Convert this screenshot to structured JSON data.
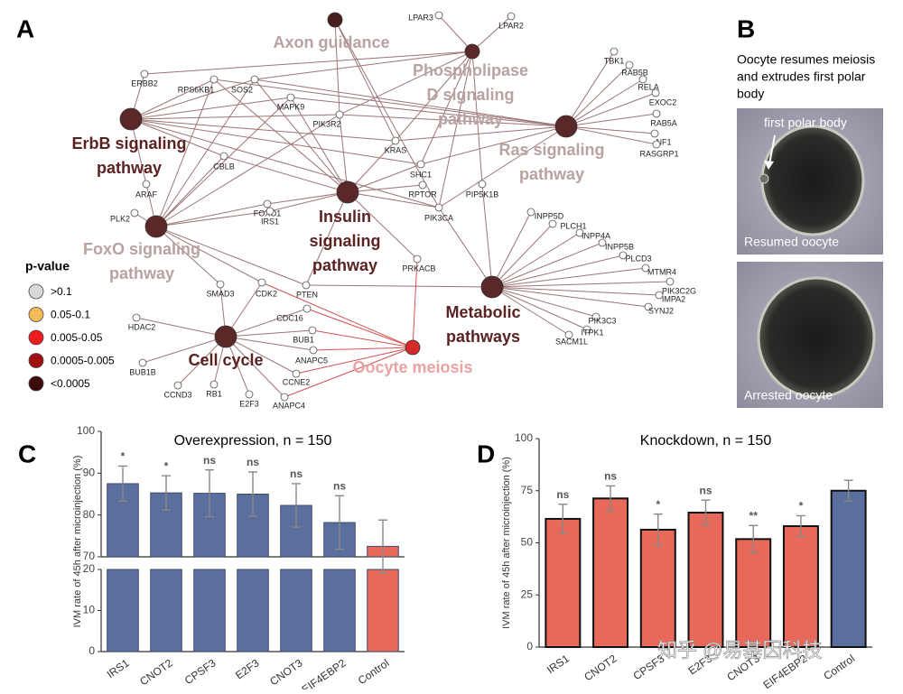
{
  "panel_a": {
    "letter": "A",
    "hubs": [
      {
        "label": [
          "Axon guidance"
        ],
        "color": "#4a1f1f",
        "label_color": "#b8a2a2"
      },
      {
        "label": [
          "Phospholipase",
          "D signaling",
          "pathway"
        ],
        "color": "#5a2828",
        "label_color": "#b8a2a2"
      },
      {
        "label": [
          "ErbB signaling",
          "pathway"
        ],
        "color": "#5a2828",
        "label_color": "#5b2222"
      },
      {
        "label": [
          "Ras signaling",
          "pathway"
        ],
        "color": "#5a2828",
        "label_color": "#b8a2a2"
      },
      {
        "label": [
          "Insulin",
          "signaling",
          "pathway"
        ],
        "color": "#5a2828",
        "label_color": "#5b2222"
      },
      {
        "label": [
          "FoxO signaling",
          "pathway"
        ],
        "color": "#5a2828",
        "label_color": "#b8a2a2"
      },
      {
        "label": [
          "Metabolic",
          "pathways"
        ],
        "color": "#5a2828",
        "label_color": "#5b2222"
      },
      {
        "label": [
          "Cell cycle"
        ],
        "color": "#5a2828",
        "label_color": "#5b2222"
      },
      {
        "label": [
          "Oocyte meiosis"
        ],
        "color": "#d42a2a",
        "label_color": "#e8a3a3"
      }
    ],
    "genes": [
      "LPAR3",
      "LPAR2",
      "ERBB2",
      "RPS6KB1",
      "SOS2",
      "MAPK9",
      "PIK3R2",
      "KRAS",
      "SHC1",
      "RPTOR",
      "PIP5K1B",
      "PIK3CA",
      "CBLB",
      "ARAF",
      "PLK2",
      "FOXO1",
      "IRS1",
      "PRKACB",
      "PTEN",
      "CDK2",
      "SMAD3",
      "HDAC2",
      "BUB1B",
      "CCND3",
      "RB1",
      "E2F3",
      "ANAPC4",
      "CCNE2",
      "ANAPC5",
      "BUB1",
      "CDC16",
      "TBK1",
      "RAB5B",
      "RELA",
      "EXOC2",
      "RAB5A",
      "NF1",
      "RASGRP1",
      "INPP5D",
      "PLCH1",
      "INPP4A",
      "INPP5B",
      "PLCD3",
      "MTMR4",
      "PIK3C2G",
      "IMPA2",
      "SYNJ2",
      "PIK3C3",
      "ITPK1",
      "SACM1L"
    ],
    "legend": {
      "title": "p-value",
      "items": [
        {
          "label": ">0.1",
          "color": "#d9d9d9"
        },
        {
          "label": "0.05-0.1",
          "color": "#f5b955"
        },
        {
          "label": "0.005-0.05",
          "color": "#ee1c1c"
        },
        {
          "label": "0.0005-0.005",
          "color": "#a01010"
        },
        {
          "label": "<0.0005",
          "color": "#3d0a0a"
        }
      ]
    }
  },
  "panel_b": {
    "letter": "B",
    "title": [
      "Oocyte resumes meiosis",
      "and extrudes first polar",
      "body"
    ],
    "annotation": "first polar body",
    "images": [
      {
        "label": "Resumed oocyte"
      },
      {
        "label": "Arrested oocyte"
      }
    ]
  },
  "chart_data": [
    {
      "type": "bar",
      "panel": "C",
      "title": "Overexpression, n = 150",
      "y_label": "IVM rate of 45h after microinjection (%)",
      "categories": [
        "IRS1",
        "CNOT2",
        "CPSF3",
        "E2F3",
        "CNOT3",
        "EIF4EBP2",
        "Control"
      ],
      "values": [
        87.5,
        85.3,
        85.2,
        85.0,
        82.3,
        78.2,
        72.5
      ],
      "errors": [
        4.2,
        4.1,
        5.6,
        5.3,
        5.2,
        6.4,
        6.3
      ],
      "significance": [
        "*",
        "*",
        "ns",
        "ns",
        "ns",
        "ns",
        null
      ],
      "colors": [
        "#5b6f9e",
        "#5b6f9e",
        "#5b6f9e",
        "#5b6f9e",
        "#5b6f9e",
        "#5b6f9e",
        "#e8685a"
      ],
      "edgecolor": "#3d4d70",
      "ylim": [
        70,
        100
      ],
      "yticks": [
        70,
        80,
        90,
        100
      ],
      "ylim_lower": [
        0,
        20
      ],
      "yticks_lower": [
        0,
        10,
        20
      ]
    },
    {
      "type": "bar",
      "panel": "D",
      "title": "Knockdown, n = 150",
      "y_label": "IVM rate of 45h after microinjection (%)",
      "categories": [
        "IRS1",
        "CNOT2",
        "CPSF3",
        "E2F3",
        "CNOT3",
        "EIF4EBP2",
        "Control"
      ],
      "values": [
        61.5,
        71.3,
        56.3,
        64.5,
        51.8,
        58.0,
        75.0
      ],
      "errors": [
        7.0,
        6.0,
        7.5,
        6.0,
        6.5,
        5.0,
        5.0
      ],
      "significance": [
        "ns",
        "ns",
        "*",
        "ns",
        "**",
        "*",
        null
      ],
      "colors": [
        "#e8685a",
        "#e8685a",
        "#e8685a",
        "#e8685a",
        "#e8685a",
        "#e8685a",
        "#5b6f9e"
      ],
      "edgecolor": "#111111",
      "ylim": [
        0,
        100
      ],
      "yticks": [
        0,
        25,
        50,
        75,
        100
      ]
    }
  ],
  "watermark": "知乎 @易基因科技"
}
